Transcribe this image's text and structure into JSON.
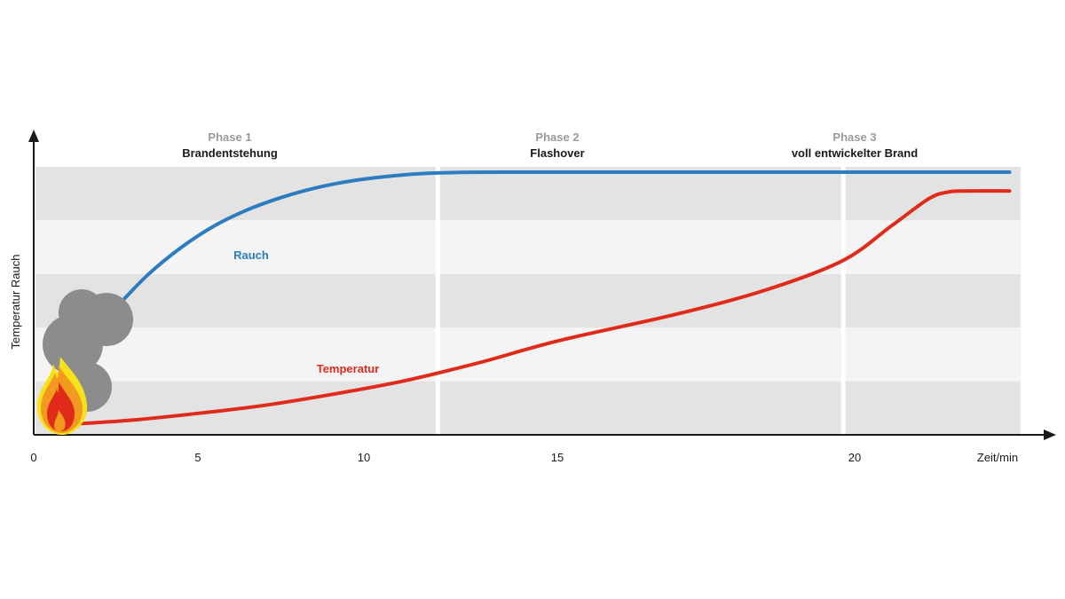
{
  "chart_data": {
    "type": "line",
    "xlabel": "Zeit/min",
    "ylabel": "Temperatur Rauch",
    "xlim": [
      0,
      24.5
    ],
    "ylim": [
      0,
      100
    ],
    "x_ticks": [
      "0",
      "5",
      "10",
      "15",
      "20"
    ],
    "x_tick_values": [
      0,
      5,
      10,
      15,
      20
    ],
    "grid": "horizontal bands",
    "phases": [
      {
        "label": "Phase 1",
        "name": "Brandentstehung",
        "start": 0,
        "end": 11.9
      },
      {
        "label": "Phase 2",
        "name": "Flashover",
        "start": 11.9,
        "end": 19.8
      },
      {
        "label": "Phase 3",
        "name": "voll entwickelter Brand",
        "start": 19.8,
        "end": 24.5
      }
    ],
    "series": [
      {
        "name": "Rauch",
        "color": "#2e7cc0",
        "x": [
          2.7,
          3.5,
          4.5,
          5.5,
          6.5,
          7.5,
          8.5,
          9.5,
          10.5,
          11.5,
          12.5,
          13.5,
          15,
          20,
          24.2
        ],
        "y": [
          50,
          60,
          70,
          78,
          84,
          88.5,
          92,
          94.5,
          96.3,
          97.5,
          97.9,
          98,
          98,
          98,
          98
        ]
      },
      {
        "name": "Temperatur",
        "color": "#e02a1a",
        "x": [
          1.2,
          3,
          5,
          7,
          9,
          11,
          13,
          15,
          17,
          18.5,
          19.8,
          21,
          22,
          22.5,
          23,
          24.2
        ],
        "y": [
          4,
          5.5,
          8,
          11,
          15,
          20,
          27,
          35,
          45,
          54,
          65,
          78,
          88,
          90.5,
          91,
          91
        ]
      }
    ]
  }
}
